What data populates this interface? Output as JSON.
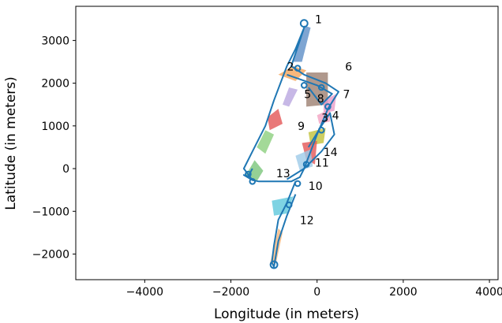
{
  "chart_data": {
    "type": "line",
    "xlabel": "Longitude (in meters)",
    "ylabel": "Latitude (in meters)",
    "xlim": [
      -5600,
      4200
    ],
    "ylim": [
      -2600,
      3800
    ],
    "xticks": [
      -4000,
      -2000,
      0,
      2000,
      4000
    ],
    "yticks": [
      -2000,
      -1000,
      0,
      1000,
      2000,
      3000
    ],
    "xtick_labels": [
      "−4000",
      "−2000",
      "0",
      "2000",
      "4000"
    ],
    "ytick_labels": [
      "−2000",
      "−1000",
      "0",
      "1000",
      "2000",
      "3000"
    ],
    "grid": false,
    "line_color": "#1f77b4",
    "road_path": [
      [
        -1500,
        0
      ],
      [
        -1600,
        -180
      ],
      [
        -1700,
        -150
      ],
      [
        -1500,
        -270
      ],
      [
        -1350,
        -300
      ],
      [
        -600,
        -300
      ],
      [
        -400,
        -200
      ],
      [
        -300,
        0
      ],
      [
        0,
        800
      ],
      [
        250,
        1400
      ],
      [
        500,
        1800
      ],
      [
        200,
        2000
      ],
      [
        -300,
        2200
      ],
      [
        -600,
        2400
      ],
      [
        -400,
        3000
      ],
      [
        -300,
        3300
      ],
      [
        -500,
        2800
      ],
      [
        -700,
        2400
      ],
      [
        -1000,
        1600
      ],
      [
        -1200,
        1000
      ],
      [
        -1500,
        400
      ],
      [
        -1700,
        0
      ],
      [
        -1500,
        -270
      ]
    ],
    "road_path_2": [
      [
        -500,
        -300
      ],
      [
        -700,
        -800
      ],
      [
        -900,
        -1200
      ],
      [
        -1000,
        -1800
      ],
      [
        -1050,
        -2200
      ],
      [
        -1000,
        -2300
      ],
      [
        -900,
        -1700
      ],
      [
        -700,
        -1100
      ],
      [
        -500,
        -600
      ]
    ],
    "road_path_3": [
      [
        -700,
        2200
      ],
      [
        0,
        1950
      ],
      [
        350,
        1750
      ],
      [
        100,
        1500
      ],
      [
        -200,
        1900
      ]
    ],
    "road_path_4": [
      [
        -200,
        500
      ],
      [
        100,
        1000
      ],
      [
        300,
        1300
      ],
      [
        400,
        800
      ],
      [
        100,
        400
      ],
      [
        -300,
        0
      ],
      [
        -700,
        -250
      ]
    ],
    "circles": [
      {
        "x": -300,
        "y": 3400,
        "r": 80
      },
      {
        "x": -1000,
        "y": -2250,
        "r": 80
      },
      {
        "x": -1600,
        "y": -130,
        "r": 60
      },
      {
        "x": -1500,
        "y": -300,
        "r": 60
      },
      {
        "x": -450,
        "y": 2350,
        "r": 60
      },
      {
        "x": 250,
        "y": 1450,
        "r": 60
      },
      {
        "x": 100,
        "y": 900,
        "r": 60
      },
      {
        "x": -250,
        "y": 100,
        "r": 60
      },
      {
        "x": -450,
        "y": -350,
        "r": 60
      },
      {
        "x": -650,
        "y": -850,
        "r": 60
      },
      {
        "x": 100,
        "y": 1900,
        "r": 60
      },
      {
        "x": -300,
        "y": 1950,
        "r": 60
      }
    ],
    "regions": [
      {
        "id": "1",
        "color": "#5e8fc7",
        "points": [
          [
            -550,
            2500
          ],
          [
            -300,
            3350
          ],
          [
            -150,
            3300
          ],
          [
            -350,
            2500
          ]
        ]
      },
      {
        "id": "2",
        "color": "#f5a55a",
        "points": [
          [
            -900,
            2200
          ],
          [
            -550,
            2400
          ],
          [
            -250,
            2300
          ],
          [
            -500,
            2050
          ]
        ]
      },
      {
        "id": "5",
        "color": "#b9a6e0",
        "points": [
          [
            -800,
            1500
          ],
          [
            -650,
            1900
          ],
          [
            -450,
            1850
          ],
          [
            -650,
            1450
          ]
        ]
      },
      {
        "id": "6",
        "color": "#9c8070",
        "points": [
          [
            -250,
            2250
          ],
          [
            250,
            2250
          ],
          [
            250,
            1500
          ],
          [
            -250,
            1450
          ]
        ]
      },
      {
        "id": "7",
        "color": "#e89cc8",
        "points": [
          [
            150,
            1600
          ],
          [
            450,
            1750
          ],
          [
            400,
            1350
          ],
          [
            150,
            1300
          ]
        ]
      },
      {
        "id": "8",
        "color": "#f3a2c2",
        "points": [
          [
            0,
            1250
          ],
          [
            300,
            1400
          ],
          [
            300,
            1100
          ],
          [
            50,
            1050
          ]
        ]
      },
      {
        "id": "9",
        "color": "#c2c23a",
        "points": [
          [
            -200,
            850
          ],
          [
            200,
            950
          ],
          [
            150,
            600
          ],
          [
            -150,
            550
          ]
        ]
      },
      {
        "id": "4",
        "color": "#e45656",
        "points": [
          [
            -1150,
            1200
          ],
          [
            -900,
            1400
          ],
          [
            -800,
            1050
          ],
          [
            -1100,
            900
          ]
        ]
      },
      {
        "id": "3",
        "color": "#8ccf7e",
        "points": [
          [
            -1400,
            500
          ],
          [
            -1200,
            900
          ],
          [
            -1000,
            800
          ],
          [
            -1200,
            350
          ]
        ]
      },
      {
        "id": "13",
        "color": "#7bc67a",
        "points": [
          [
            -1650,
            -150
          ],
          [
            -1450,
            200
          ],
          [
            -1250,
            -50
          ],
          [
            -1400,
            -300
          ]
        ]
      },
      {
        "id": "14",
        "color": "#e45656",
        "points": [
          [
            -350,
            600
          ],
          [
            0,
            650
          ],
          [
            -50,
            100
          ],
          [
            -250,
            200
          ]
        ]
      },
      {
        "id": "11",
        "color": "#9ecae9",
        "points": [
          [
            -500,
            300
          ],
          [
            -150,
            450
          ],
          [
            -100,
            50
          ],
          [
            -400,
            -50
          ]
        ]
      },
      {
        "id": "10",
        "color": "#5ec8dc",
        "points": [
          [
            -1050,
            -750
          ],
          [
            -550,
            -650
          ],
          [
            -700,
            -1050
          ],
          [
            -1000,
            -1100
          ]
        ]
      },
      {
        "id": "12",
        "color": "#f5b57a",
        "points": [
          [
            -1100,
            -2250
          ],
          [
            -900,
            -1400
          ],
          [
            -800,
            -1500
          ],
          [
            -950,
            -2200
          ]
        ]
      }
    ],
    "annotations": [
      {
        "text": "1",
        "x": -50,
        "y": 3400
      },
      {
        "text": "2",
        "x": -700,
        "y": 2300
      },
      {
        "text": "5",
        "x": -300,
        "y": 1650
      },
      {
        "text": "6",
        "x": 650,
        "y": 2300
      },
      {
        "text": "7",
        "x": 600,
        "y": 1650
      },
      {
        "text": "8",
        "x": 0,
        "y": 1550
      },
      {
        "text": "4",
        "x": 350,
        "y": 1150
      },
      {
        "text": "9",
        "x": -450,
        "y": 900
      },
      {
        "text": "3",
        "x": 100,
        "y": 1100
      },
      {
        "text": "14",
        "x": 150,
        "y": 300
      },
      {
        "text": "11",
        "x": -50,
        "y": 50
      },
      {
        "text": "13",
        "x": -950,
        "y": -200
      },
      {
        "text": "10",
        "x": -200,
        "y": -500
      },
      {
        "text": "12",
        "x": -400,
        "y": -1300
      }
    ]
  }
}
